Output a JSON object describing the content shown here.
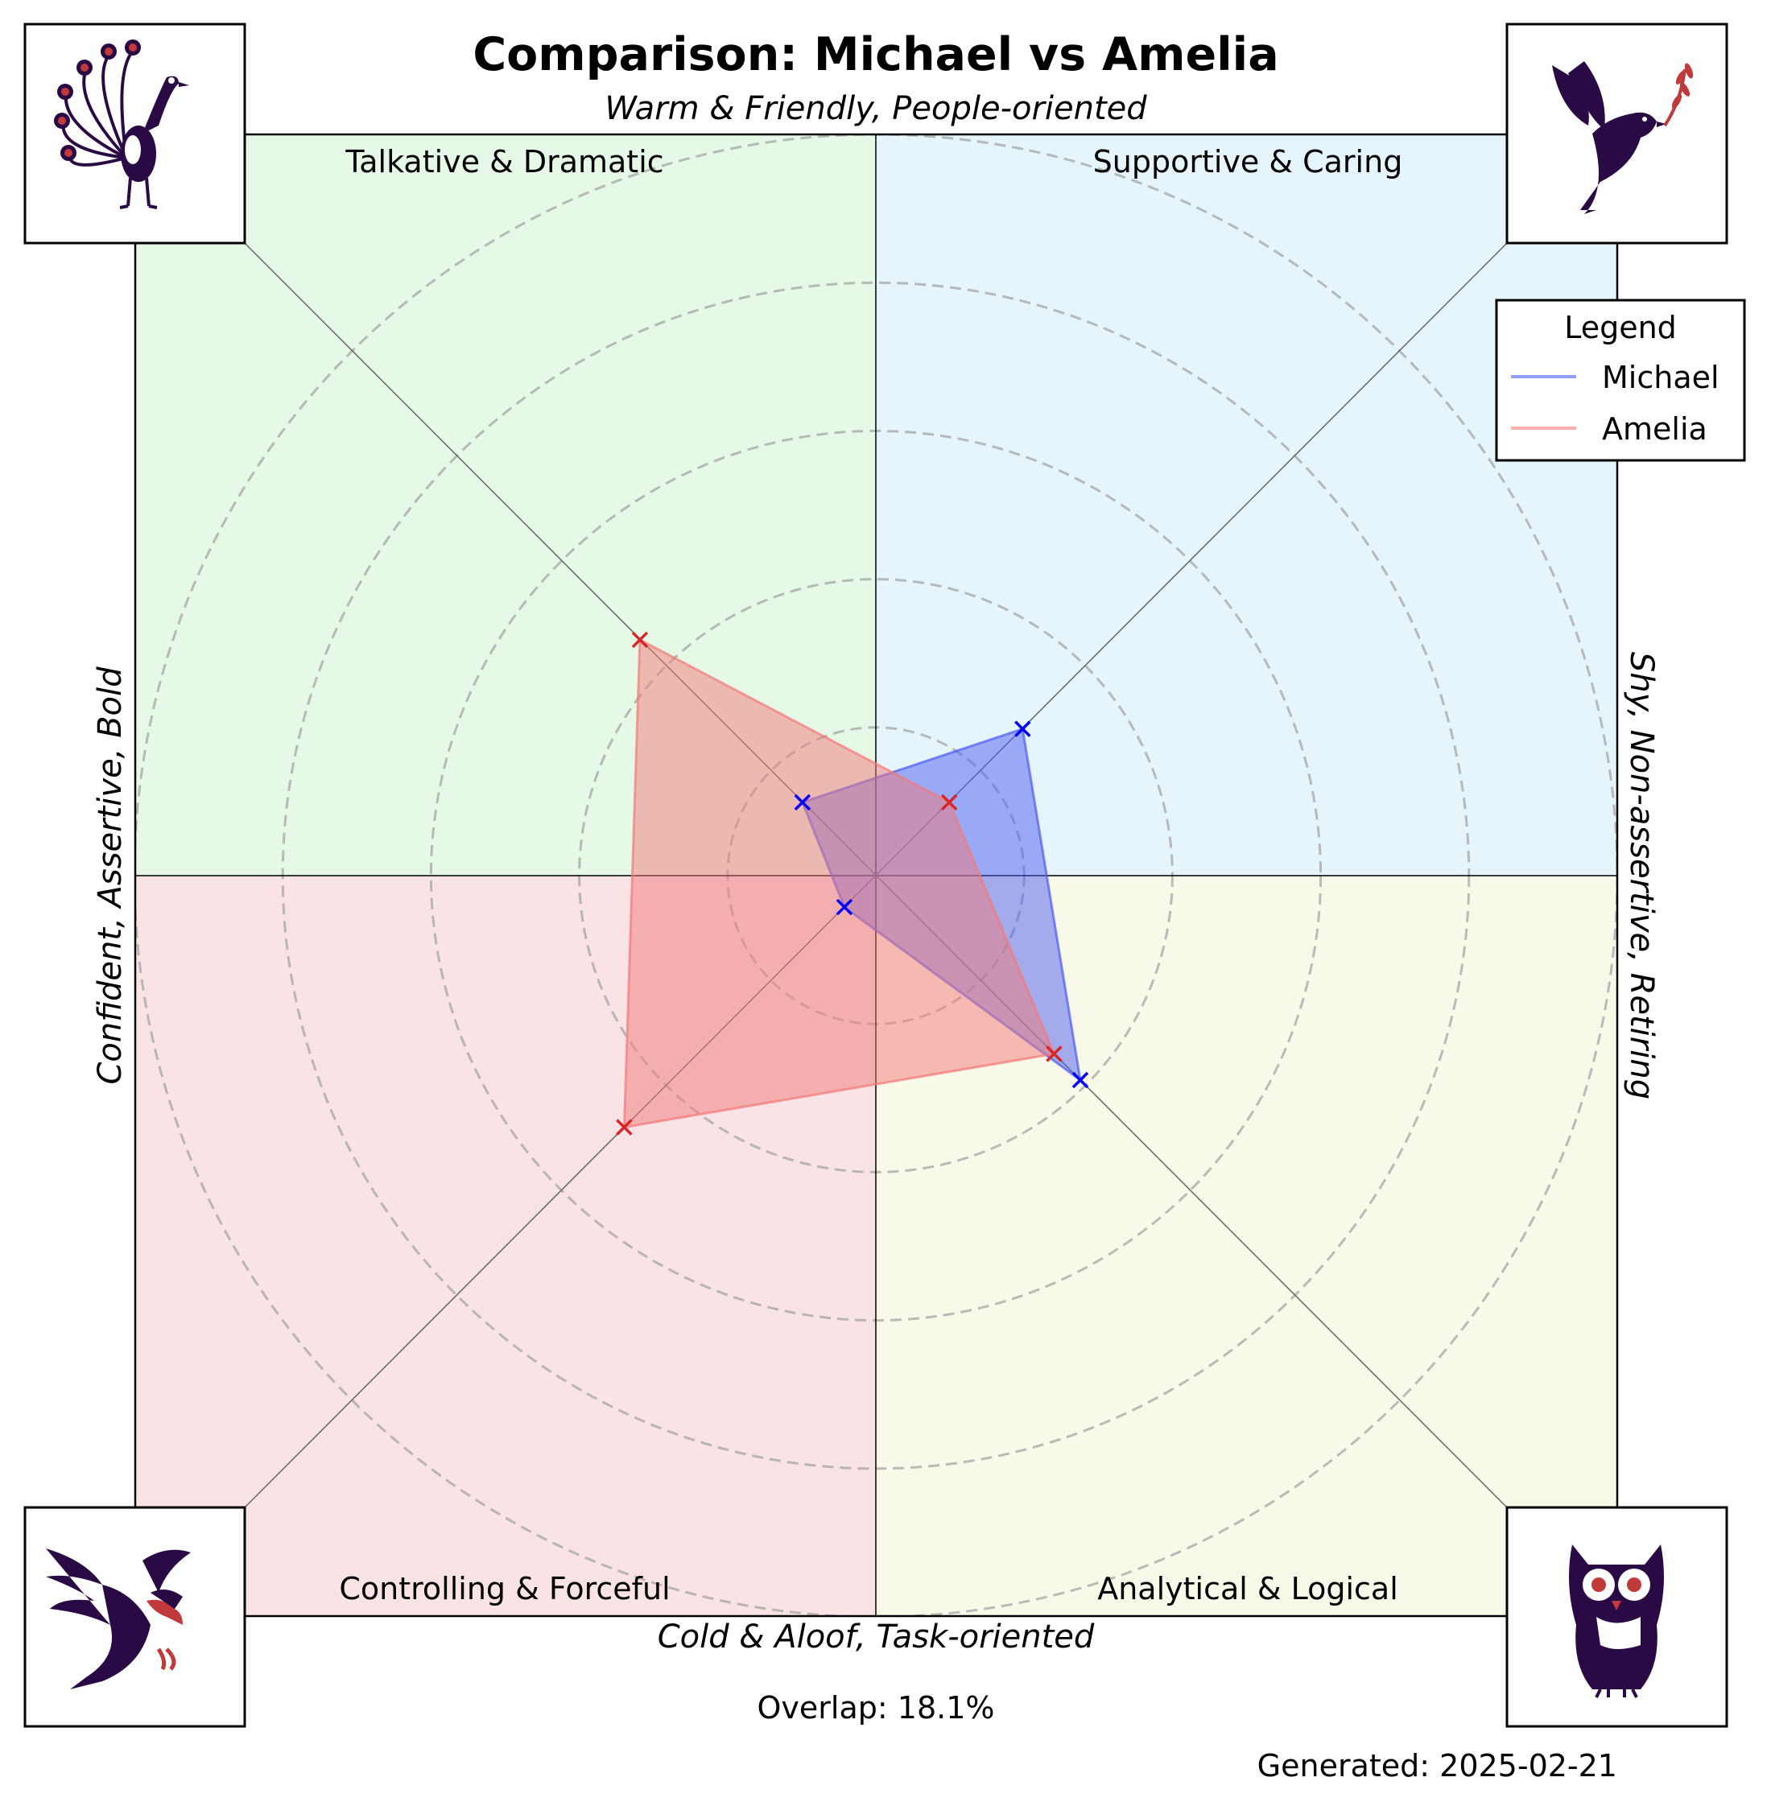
{
  "chart_data": {
    "type": "radar",
    "title": "Comparison: Michael vs Amelia",
    "axes_labels": {
      "top": "Warm & Friendly, People-oriented",
      "bottom": "Cold & Aloof, Task-oriented",
      "left": "Confident, Assertive, Bold",
      "right": "Shy, Non-assertive, Retiring"
    },
    "quadrants": [
      {
        "key": "top-left",
        "label": "Talkative & Dramatic",
        "color": "#e6f9e6",
        "icon": "peacock-icon"
      },
      {
        "key": "top-right",
        "label": "Supportive & Caring",
        "color": "#e6f4fc",
        "icon": "dove-icon"
      },
      {
        "key": "bottom-left",
        "label": "Controlling & Forceful",
        "color": "#f9e3e4",
        "icon": "eagle-icon"
      },
      {
        "key": "bottom-right",
        "label": "Analytical & Logical",
        "color": "#f9f9ea",
        "icon": "owl-icon"
      }
    ],
    "categories": [
      "Talkative & Dramatic",
      "Supportive & Caring",
      "Analytical & Logical",
      "Controlling & Forceful"
    ],
    "series": [
      {
        "name": "Michael",
        "values": [
          1.4,
          2.8,
          3.9,
          0.6
        ],
        "color": "#4d5df0",
        "marker_color": "#0000ff"
      },
      {
        "name": "Amelia",
        "values": [
          4.5,
          1.4,
          3.4,
          4.8
        ],
        "color": "#f27979",
        "marker_color": "#d62728"
      }
    ],
    "rlim": [
      0,
      10
    ],
    "ring_values": [
      2,
      4,
      6,
      8,
      10
    ],
    "grid": true,
    "legend": {
      "title": "Legend",
      "placement": "top-right"
    },
    "overlap_text": "Overlap: 18.1%",
    "generated_text": "Generated: 2025-02-21"
  }
}
